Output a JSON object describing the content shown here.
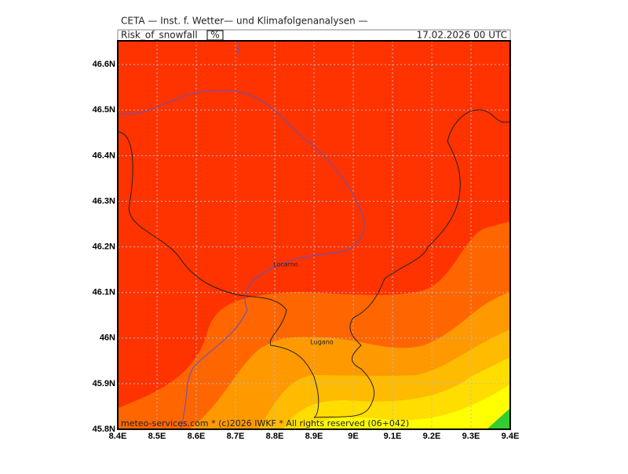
{
  "header": {
    "source": "CETA — Inst. f. Wetter— und Klimafolgenanalysen —",
    "variable": "Risk_of_snowfall",
    "unit": "%",
    "valid": "17.02.2026 00 UTC"
  },
  "axes": {
    "x_labels": [
      "8.4E",
      "8.5E",
      "8.6E",
      "8.7E",
      "8.8E",
      "8.9E",
      "9E",
      "9.1E",
      "9.2E",
      "9.3E",
      "9.4E"
    ],
    "y_labels": [
      "46.6N",
      "46.5N",
      "46.4N",
      "46.3N",
      "46.2N",
      "46.1N",
      "46N",
      "45.9N",
      "45.8N"
    ]
  },
  "places": [
    "Locarno",
    "Lugano"
  ],
  "footer": "meteo-services.com * (c)2026 IWKF * All rights reserved (06+042)"
}
